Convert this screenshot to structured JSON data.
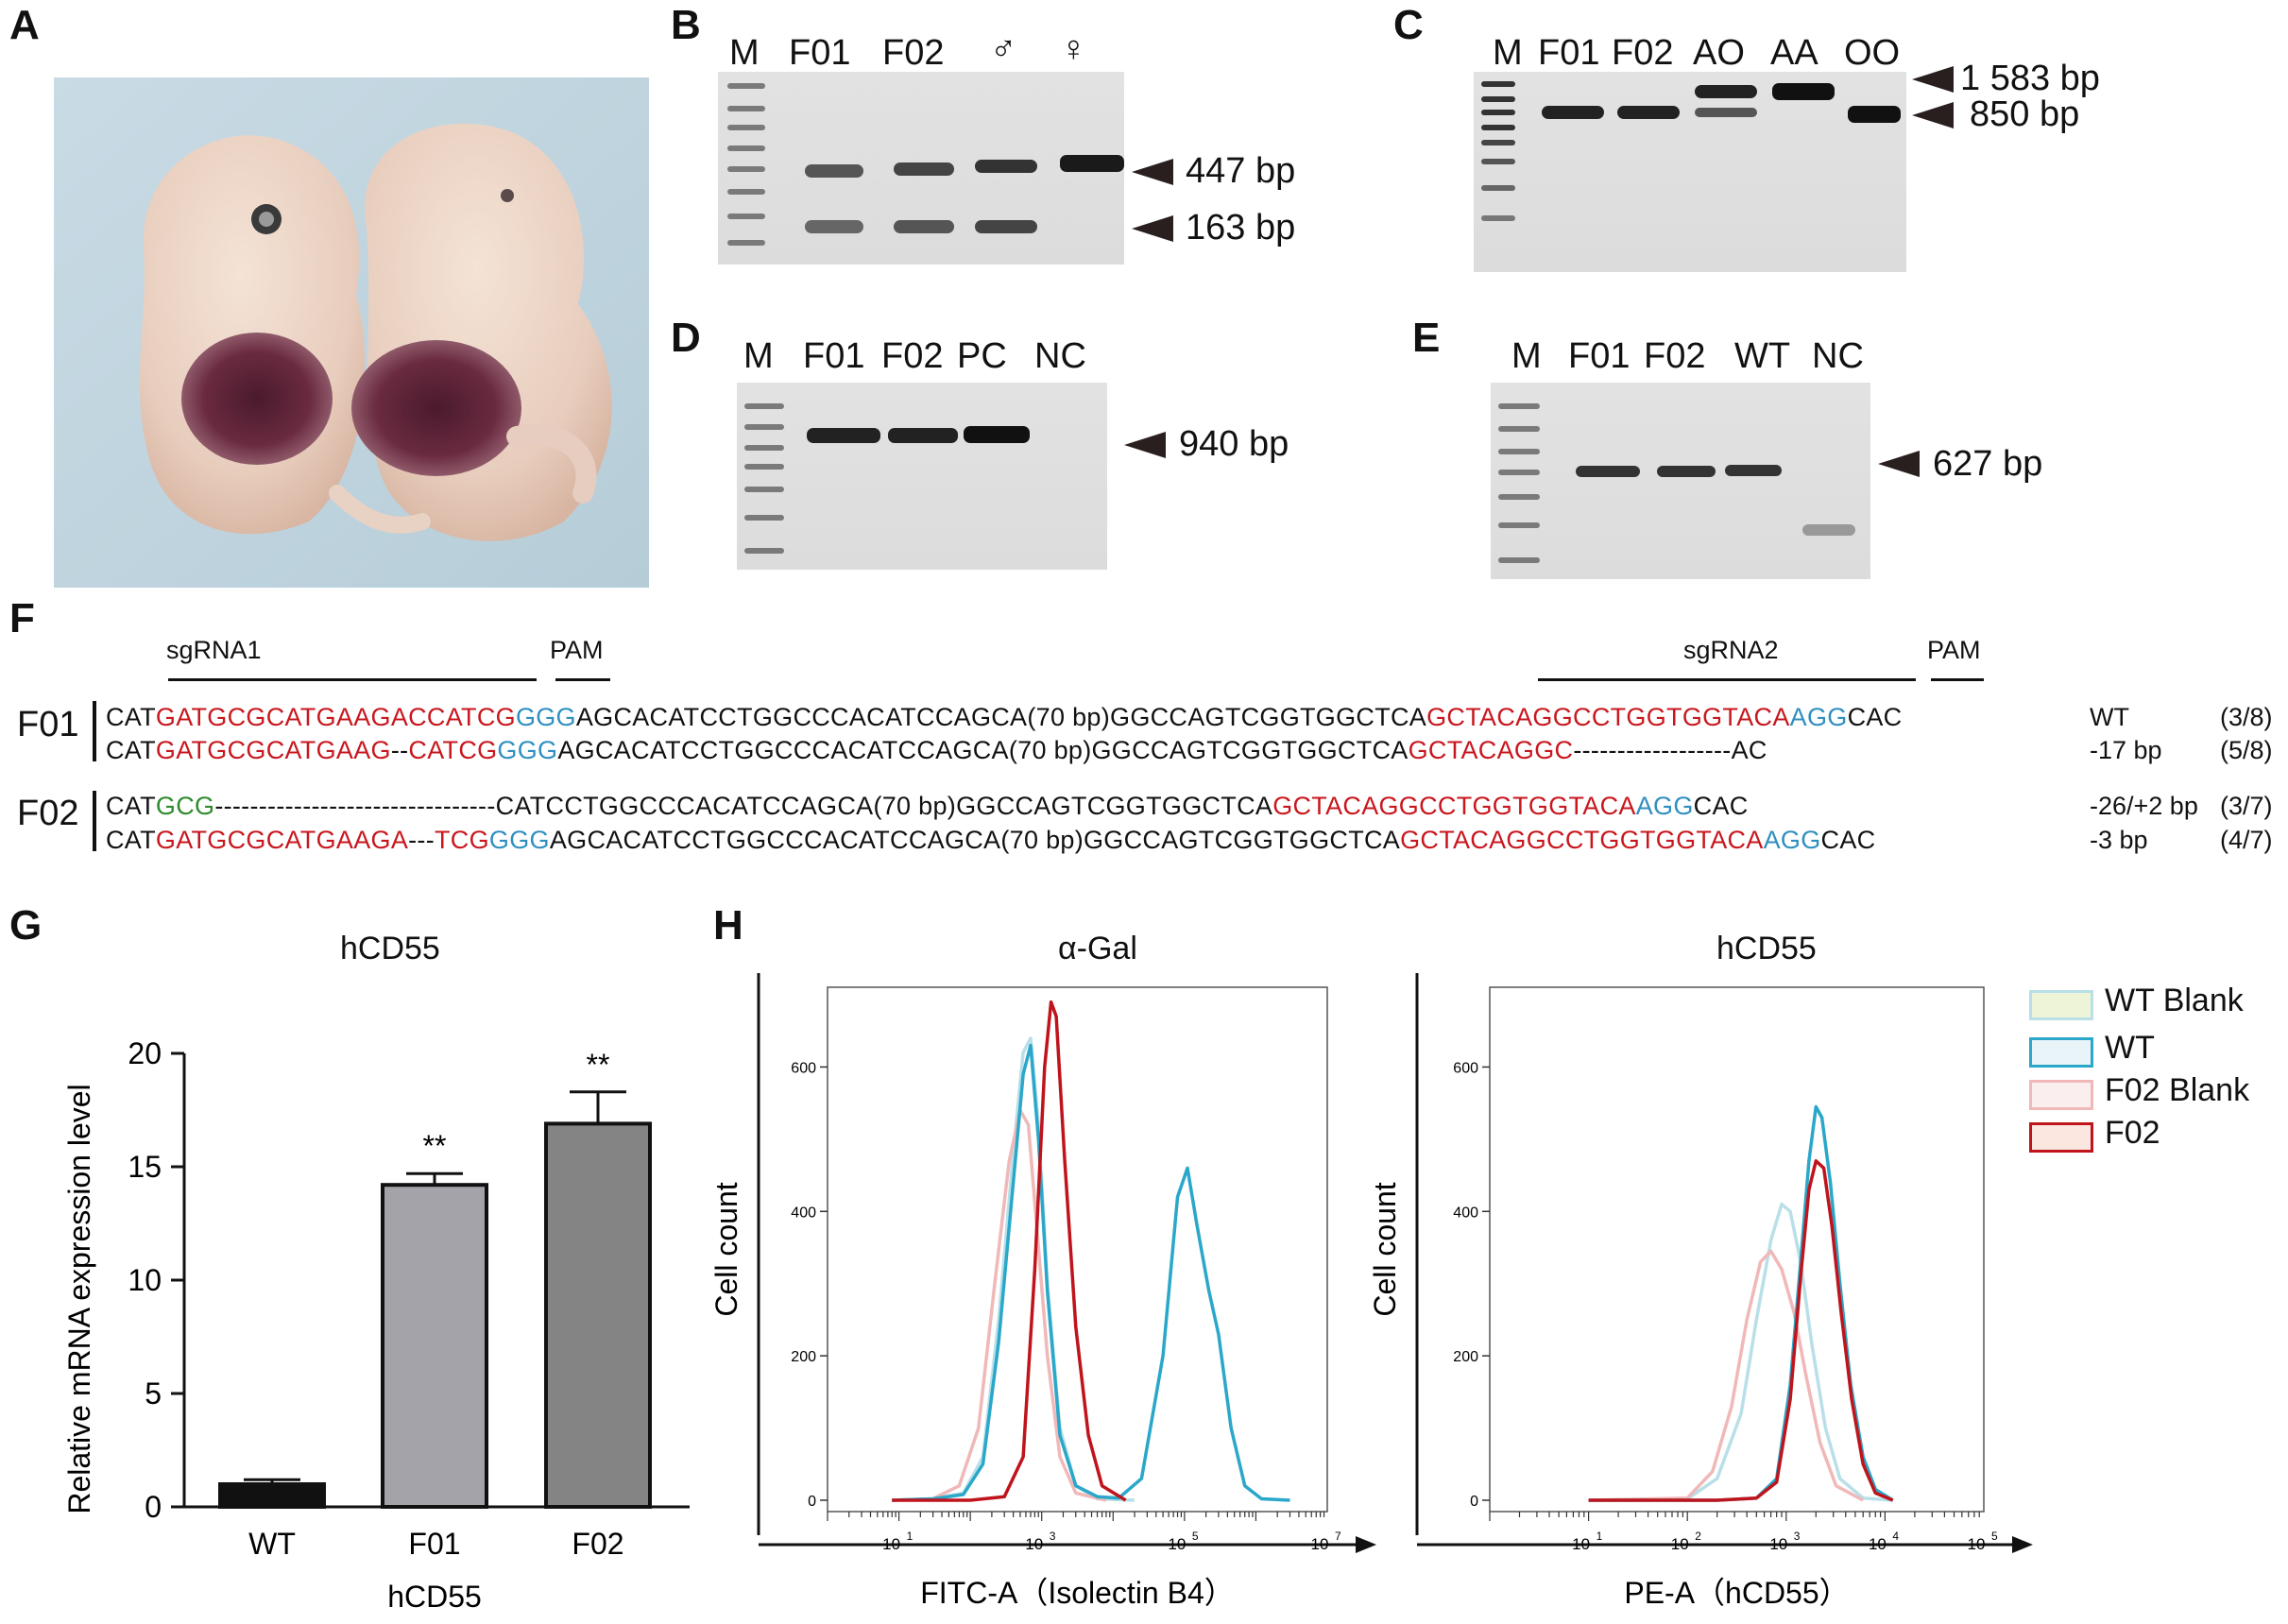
{
  "panels": {
    "A": {
      "letter": "A",
      "photo_desc": "embryo-photo"
    },
    "B": {
      "letter": "B",
      "lanes": [
        "M",
        "F01",
        "F02",
        "♂",
        "♀"
      ],
      "bands": [
        "447 bp",
        "163 bp"
      ]
    },
    "C": {
      "letter": "C",
      "lanes": [
        "M",
        "F01",
        "F02",
        "AO",
        "AA",
        "OO"
      ],
      "bands": [
        "1 583 bp",
        "850 bp"
      ]
    },
    "D": {
      "letter": "D",
      "lanes": [
        "M",
        "F01",
        "F02",
        "PC",
        "NC"
      ],
      "bands": [
        "940 bp"
      ]
    },
    "E": {
      "letter": "E",
      "lanes": [
        "M",
        "F01",
        "F02",
        "WT",
        "NC"
      ],
      "bands": [
        "627 bp"
      ]
    },
    "F": {
      "letter": "F",
      "header": {
        "sgrna1": "sgRNA1",
        "pam1": "PAM",
        "sgrna2": "sgRNA2",
        "pam2": "PAM"
      },
      "groups": [
        {
          "name": "F01",
          "rows": [
            {
              "segs": [
                [
                  "CAT",
                  ""
                ],
                [
                  "GATGCGCATGAAGACCATCG",
                  "red"
                ],
                [
                  "GGG",
                  "blue"
                ],
                [
                  "AGCACATCCTGGCCCACATCCAGCA(70 bp)GGCCAGTCGGTGGCTCA",
                  ""
                ],
                [
                  "GCTACAGGCCTGGTGGTACA",
                  "red"
                ],
                [
                  "AGG",
                  "blue"
                ],
                [
                  "CAC",
                  ""
                ]
              ],
              "label": "WT",
              "frac": "(3/8)"
            },
            {
              "segs": [
                [
                  "CAT",
                  ""
                ],
                [
                  "GATGCGCATGAAG",
                  "red"
                ],
                [
                  "--",
                  ""
                ],
                [
                  "CATCG",
                  "red"
                ],
                [
                  "GGG",
                  "blue"
                ],
                [
                  "AGCACATCCTGGCCCACATCCAGCA(70 bp)GGCCAGTCGGTGGCTCA",
                  ""
                ],
                [
                  "GCTACAGGC",
                  "red"
                ],
                [
                  "------------------AC",
                  ""
                ]
              ],
              "label": "-17 bp",
              "frac": "(5/8)"
            }
          ]
        },
        {
          "name": "F02",
          "rows": [
            {
              "segs": [
                [
                  "CAT",
                  ""
                ],
                [
                  "GCG",
                  "green"
                ],
                [
                  "--------------------------------",
                  ""
                ],
                [
                  "CATCCTGGCCCACATCCAGCA(70 bp)GGCCAGTCGGTGGCTCA",
                  ""
                ],
                [
                  "GCTACAGGCCTGGTGGTACA",
                  "red"
                ],
                [
                  "AGG",
                  "blue"
                ],
                [
                  "CAC",
                  ""
                ]
              ],
              "label": "-26/+2 bp",
              "frac": "(3/7)"
            },
            {
              "segs": [
                [
                  "CAT",
                  ""
                ],
                [
                  "GATGCGCATGAAGA",
                  "red"
                ],
                [
                  "---",
                  ""
                ],
                [
                  "TCG",
                  "red"
                ],
                [
                  "GGG",
                  "blue"
                ],
                [
                  "AGCACATCCTGGCCCACATCCAGCA(70 bp)GGCCAGTCGGTGGCTCA",
                  ""
                ],
                [
                  "GCTACAGGCCTGGTGGTACA",
                  "red"
                ],
                [
                  "AGG",
                  "blue"
                ],
                [
                  "CAC",
                  ""
                ]
              ],
              "label": "-3 bp",
              "frac": "(4/7)"
            }
          ]
        }
      ]
    },
    "G": {
      "letter": "G",
      "title": "hCD55",
      "sig": "**"
    },
    "H": {
      "letter": "H",
      "left": {
        "title": "α-Gal",
        "ylabel": "Cell count",
        "xlabel": "FITC-A（Isolectin B4）"
      },
      "right": {
        "title": "hCD55",
        "ylabel": "Cell count",
        "xlabel": "PE-A（hCD55）"
      },
      "legend": [
        {
          "label": "WT Blank",
          "color": "#b9dfe8",
          "fill": "#eef4d8"
        },
        {
          "label": "WT",
          "color": "#2aa7c9",
          "fill": "#e8f4f8"
        },
        {
          "label": "F02 Blank",
          "color": "#f0b8b8",
          "fill": "#fbeeee"
        },
        {
          "label": "F02",
          "color": "#c0141c",
          "fill": "#fbe6e0"
        }
      ]
    }
  },
  "chart_data": [
    {
      "type": "bar",
      "title": "hCD55",
      "categories": [
        "WT",
        "F01",
        "F02"
      ],
      "values": [
        1.0,
        14.2,
        16.9
      ],
      "errors": [
        0.2,
        0.5,
        1.4
      ],
      "significance": [
        "",
        "**",
        "**"
      ],
      "bar_colors": [
        "#111111",
        "#a3a3a9",
        "#848484"
      ],
      "xlabel": "hCD55",
      "ylabel": "Relative mRNA expression level",
      "ylim": [
        0,
        20
      ],
      "yticks": [
        0,
        5,
        10,
        15,
        20
      ]
    },
    {
      "type": "line",
      "title": "α-Gal",
      "xlabel": "FITC-A（Isolectin B4）",
      "ylabel": "Cell count",
      "xscale": "log",
      "xlim": [
        1,
        10000000
      ],
      "xtick_exponents": [
        1,
        3,
        5,
        7
      ],
      "ylim": [
        0,
        700
      ],
      "yticks": [
        0,
        200,
        400,
        600
      ],
      "series": [
        {
          "name": "WT Blank",
          "color": "#b9dfe8",
          "points": [
            [
              8,
              0
            ],
            [
              30,
              2
            ],
            [
              80,
              10
            ],
            [
              150,
              60
            ],
            [
              250,
              250
            ],
            [
              400,
              480
            ],
            [
              550,
              620
            ],
            [
              700,
              640
            ],
            [
              900,
              520
            ],
            [
              1200,
              300
            ],
            [
              1800,
              100
            ],
            [
              3000,
              20
            ],
            [
              6000,
              2
            ],
            [
              20000,
              0
            ]
          ]
        },
        {
          "name": "WT",
          "color": "#2aa7c9",
          "points": [
            [
              8,
              0
            ],
            [
              30,
              2
            ],
            [
              80,
              8
            ],
            [
              150,
              50
            ],
            [
              250,
              220
            ],
            [
              400,
              440
            ],
            [
              550,
              590
            ],
            [
              700,
              630
            ],
            [
              900,
              500
            ],
            [
              1200,
              290
            ],
            [
              1800,
              90
            ],
            [
              3000,
              20
            ],
            [
              6000,
              5
            ],
            [
              12000,
              3
            ],
            [
              25000,
              30
            ],
            [
              50000,
              200
            ],
            [
              80000,
              420
            ],
            [
              110000,
              460
            ],
            [
              150000,
              380
            ],
            [
              220000,
              290
            ],
            [
              300000,
              230
            ],
            [
              450000,
              100
            ],
            [
              700000,
              20
            ],
            [
              1200000,
              2
            ],
            [
              3000000,
              0
            ]
          ]
        },
        {
          "name": "F02 Blank",
          "color": "#f0b8b8",
          "points": [
            [
              8,
              0
            ],
            [
              30,
              2
            ],
            [
              70,
              20
            ],
            [
              130,
              100
            ],
            [
              220,
              300
            ],
            [
              350,
              470
            ],
            [
              500,
              540
            ],
            [
              650,
              520
            ],
            [
              850,
              380
            ],
            [
              1200,
              200
            ],
            [
              1800,
              60
            ],
            [
              3000,
              10
            ],
            [
              8000,
              0
            ]
          ]
        },
        {
          "name": "F02",
          "color": "#c0141c",
          "points": [
            [
              8,
              0
            ],
            [
              100,
              0
            ],
            [
              300,
              5
            ],
            [
              550,
              60
            ],
            [
              800,
              320
            ],
            [
              1100,
              600
            ],
            [
              1350,
              690
            ],
            [
              1600,
              670
            ],
            [
              2100,
              470
            ],
            [
              3000,
              240
            ],
            [
              4500,
              90
            ],
            [
              7000,
              20
            ],
            [
              15000,
              0
            ]
          ]
        }
      ]
    },
    {
      "type": "line",
      "title": "hCD55",
      "xlabel": "PE-A（hCD55）",
      "ylabel": "Cell count",
      "xscale": "log",
      "xlim": [
        1,
        100000
      ],
      "xtick_exponents": [
        1,
        2,
        3,
        4,
        5
      ],
      "ylim": [
        0,
        700
      ],
      "yticks": [
        0,
        200,
        400,
        600
      ],
      "series": [
        {
          "name": "WT Blank",
          "color": "#b9dfe8",
          "points": [
            [
              10,
              0
            ],
            [
              100,
              2
            ],
            [
              200,
              30
            ],
            [
              350,
              120
            ],
            [
              500,
              250
            ],
            [
              700,
              360
            ],
            [
              900,
              410
            ],
            [
              1100,
              400
            ],
            [
              1400,
              330
            ],
            [
              1800,
              220
            ],
            [
              2500,
              100
            ],
            [
              3500,
              30
            ],
            [
              6000,
              3
            ],
            [
              12000,
              0
            ]
          ]
        },
        {
          "name": "WT",
          "color": "#2aa7c9",
          "points": [
            [
              10,
              0
            ],
            [
              200,
              0
            ],
            [
              500,
              3
            ],
            [
              800,
              30
            ],
            [
              1100,
              160
            ],
            [
              1400,
              330
            ],
            [
              1700,
              470
            ],
            [
              2000,
              545
            ],
            [
              2300,
              530
            ],
            [
              2800,
              440
            ],
            [
              3500,
              300
            ],
            [
              4500,
              160
            ],
            [
              6000,
              60
            ],
            [
              8000,
              15
            ],
            [
              12000,
              0
            ]
          ]
        },
        {
          "name": "F02 Blank",
          "color": "#f0b8b8",
          "points": [
            [
              10,
              0
            ],
            [
              100,
              3
            ],
            [
              180,
              40
            ],
            [
              280,
              130
            ],
            [
              400,
              250
            ],
            [
              550,
              330
            ],
            [
              700,
              345
            ],
            [
              900,
              320
            ],
            [
              1200,
              260
            ],
            [
              1600,
              170
            ],
            [
              2200,
              80
            ],
            [
              3200,
              20
            ],
            [
              6000,
              0
            ]
          ]
        },
        {
          "name": "F02",
          "color": "#c0141c",
          "points": [
            [
              10,
              0
            ],
            [
              200,
              0
            ],
            [
              500,
              3
            ],
            [
              800,
              25
            ],
            [
              1100,
              140
            ],
            [
              1400,
              310
            ],
            [
              1700,
              430
            ],
            [
              2000,
              470
            ],
            [
              2400,
              460
            ],
            [
              2900,
              380
            ],
            [
              3600,
              260
            ],
            [
              4600,
              140
            ],
            [
              6000,
              50
            ],
            [
              8000,
              10
            ],
            [
              12000,
              0
            ]
          ]
        }
      ]
    }
  ]
}
